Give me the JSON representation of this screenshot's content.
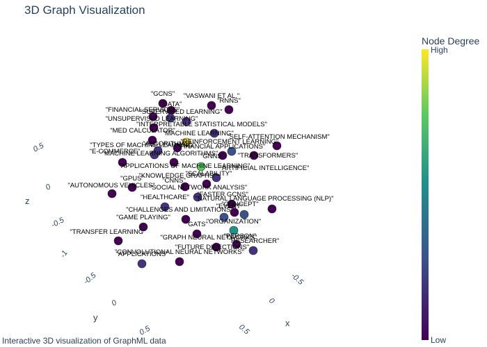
{
  "title": "3D Graph Visualization",
  "caption": "Interactive 3D visualization of GraphML data",
  "colorbar": {
    "title": "Node Degree",
    "high_label": "High",
    "low_label": "Low",
    "colorscale": [
      "#440154",
      "#3b528b",
      "#21918c",
      "#5ec962",
      "#fde725"
    ]
  },
  "chart_data": {
    "type": "scatter",
    "axes": {
      "x": {
        "title": "x",
        "ticks": [
          "-0.5",
          "0",
          "0.5"
        ]
      },
      "y": {
        "title": "y",
        "ticks": [
          "-1",
          "-0.5",
          "0",
          "0.5"
        ]
      },
      "z": {
        "title": "z",
        "ticks": [
          "-0.5",
          "0",
          "0.5"
        ]
      }
    },
    "nodes": [
      {
        "label": "\"GCNS\"",
        "color": "#440154"
      },
      {
        "label": "\"VASWANI ET AL.\"",
        "color": "#440154"
      },
      {
        "label": "\"RNNS\"",
        "color": "#440154"
      },
      {
        "label": "\"DATA\"",
        "color": "#440154"
      },
      {
        "label": "\"FINANCIAL SERVICES\"",
        "color": "#440154"
      },
      {
        "label": "\"SUPERVISED LEARNING\"",
        "color": "#46327e"
      },
      {
        "label": "\"UNSUPERVISED LEARNING\"",
        "color": "#440154"
      },
      {
        "label": "\"INTERPRETABLE STATISTICAL MODELS\"",
        "color": "#46327e"
      },
      {
        "label": "\"MED CALCULATOR\"",
        "color": "#440154"
      },
      {
        "label": "\"MACHINE LEARNING\"",
        "color": "#fde725"
      },
      {
        "label": "\"SELF-ATTENTION MECHANISM\"",
        "color": "#440154"
      },
      {
        "label": "\"REINFORCEMENT LEARNING\"",
        "color": "#46327e"
      },
      {
        "label": "\"TYPES OF MACHINE LEARNING\"",
        "color": "#46327e"
      },
      {
        "label": "\"ALGORITHMS\"",
        "color": "#440154"
      },
      {
        "label": "\"FINANCIAL APPLICATIONS\"",
        "color": "#3b528b"
      },
      {
        "label": "\"E-COMMERCE\"",
        "color": "#440154"
      },
      {
        "label": "\"MACHINE LEARNING ALGORITHMS\"",
        "color": "#46327e"
      },
      {
        "label": "\"GNNS\"",
        "color": "#440154"
      },
      {
        "label": "\"TRANSFORMERS\"",
        "color": "#440154"
      },
      {
        "label": "\"APPLICATIONS OF MACHINE LEARNING\"",
        "color": "#440154"
      },
      {
        "label": "\"ARTIFICIAL INTELLIGENCE\"",
        "color": "#5ec962"
      },
      {
        "label": "\"GPUS\"",
        "color": "#440154"
      },
      {
        "label": "\"KNOWLEDGE GRAPHS\"",
        "color": "#46327e"
      },
      {
        "label": "\"SCALABILITY\"",
        "color": "#440154"
      },
      {
        "label": "\"AUTONOMOUS VEHICLES\"",
        "color": "#440154"
      },
      {
        "label": "\"CNNS\"",
        "color": "#440154"
      },
      {
        "label": "\"SOCIAL NETWORK ANALYSIS\"",
        "color": "#46327e"
      },
      {
        "label": "\"HEALTHCARE\"",
        "color": "#46327e"
      },
      {
        "label": "\"FASTER GCNS\"",
        "color": "#440154"
      },
      {
        "label": "\"NATURAL LANGUAGE PROCESSING (NLP)\"",
        "color": "#440154"
      },
      {
        "label": "\"CONCEPT\"",
        "color": "#440154"
      },
      {
        "label": "\"CHALLENGES AND LIMITATIONS\"",
        "color": "#440154"
      },
      {
        "label": "\"EVENT\"",
        "color": "#3b528b"
      },
      {
        "label": "\"GAME PLAYING\"",
        "color": "#440154"
      },
      {
        "label": "\"ORGANIZATION\"",
        "color": "#3b528b"
      },
      {
        "label": "\"GATS\"",
        "color": "#440154"
      },
      {
        "label": "\"TRANSFER LEARNING\"",
        "color": "#440154"
      },
      {
        "label": "\"GRAPH NEURAL NETWORKS\"",
        "color": "#21918c"
      },
      {
        "label": "\"PERSON\"",
        "color": "#440154"
      },
      {
        "label": "\"RESEARCHER\"",
        "color": "#46327e"
      },
      {
        "label": "\"FUTURE DIRECTIONS\"",
        "color": "#440154"
      },
      {
        "label": "\"CONVOLUTIONAL NEURAL NETWORKS\"",
        "color": "#440154"
      },
      {
        "label": "\"APPLICATIONS\"",
        "color": "#46327e"
      }
    ]
  }
}
